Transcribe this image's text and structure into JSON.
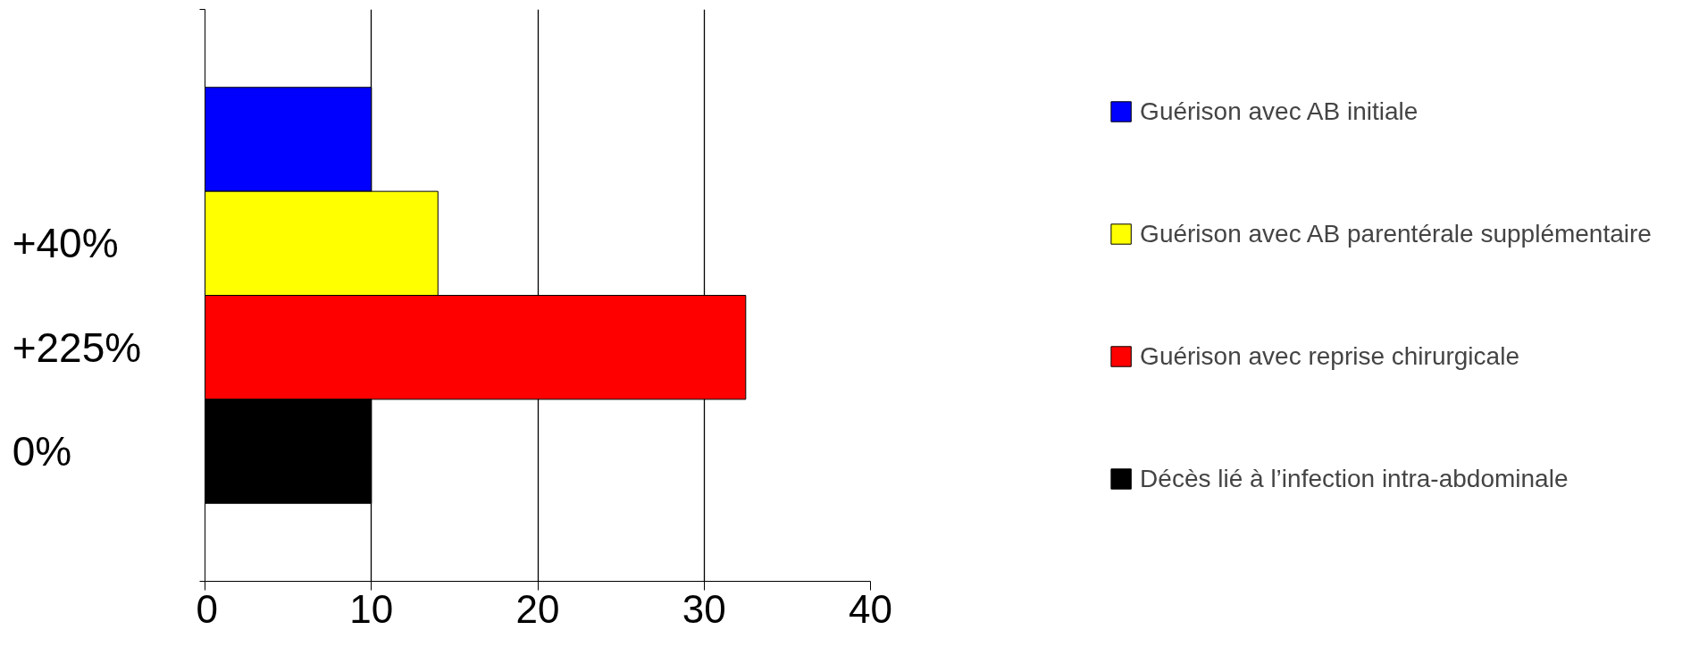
{
  "chart_data": {
    "type": "bar",
    "orientation": "horizontal",
    "categories": [
      null,
      null,
      null,
      null
    ],
    "series": [
      {
        "name": "Guérison avec AB initiale",
        "color": "#0000ff",
        "values": [
          10,
          null,
          null,
          null
        ]
      },
      {
        "name": "Guérison avec AB parentérale supplémentaire",
        "color": "#ffff00",
        "values": [
          null,
          14,
          null,
          null
        ]
      },
      {
        "name": "Guérison avec reprise chirurgicale",
        "color": "#ff0000",
        "values": [
          null,
          null,
          32.5,
          null
        ]
      },
      {
        "name": "Décès lié à l’infection intra-abdominale",
        "color": "#000000",
        "values": [
          null,
          null,
          null,
          10
        ]
      }
    ],
    "annotations": [
      "+40%",
      "+225%",
      "0%"
    ],
    "xlim": [
      0,
      40
    ],
    "xticks": [
      0,
      10,
      20,
      30,
      40
    ],
    "grid": "x",
    "legend": "right"
  }
}
